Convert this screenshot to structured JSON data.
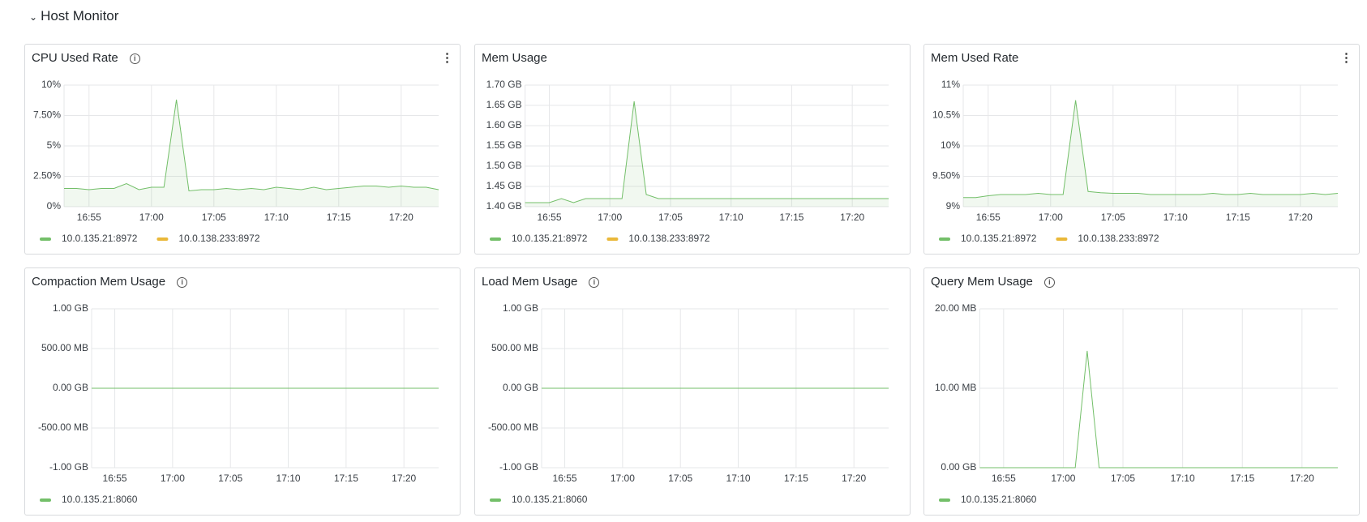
{
  "header": {
    "title": "Host Monitor"
  },
  "chart_data": [
    {
      "type": "line",
      "title": "CPU Used Rate",
      "area": true,
      "x": [
        "16:53",
        "16:54",
        "16:55",
        "16:56",
        "16:57",
        "16:58",
        "16:59",
        "17:00",
        "17:01",
        "17:02",
        "17:03",
        "17:04",
        "17:05",
        "17:06",
        "17:07",
        "17:08",
        "17:09",
        "17:10",
        "17:11",
        "17:12",
        "17:13",
        "17:14",
        "17:15",
        "17:16",
        "17:17",
        "17:18",
        "17:19",
        "17:20",
        "17:21",
        "17:22",
        "17:23"
      ],
      "xlim": [
        "16:53",
        "17:23"
      ],
      "xticks": [
        "16:55",
        "17:00",
        "17:05",
        "17:10",
        "17:15",
        "17:20"
      ],
      "ylim": [
        0,
        10
      ],
      "yticks": [
        {
          "value": 0,
          "label": "0%"
        },
        {
          "value": 2.5,
          "label": "2.50%"
        },
        {
          "value": 5,
          "label": "5%"
        },
        {
          "value": 7.5,
          "label": "7.50%"
        },
        {
          "value": 10,
          "label": "10%"
        }
      ],
      "series": [
        {
          "name": "10.0.135.21:8972",
          "color": "#73bf69",
          "values": [
            1.5,
            1.5,
            1.4,
            1.5,
            1.5,
            1.9,
            1.4,
            1.6,
            1.6,
            8.8,
            1.3,
            1.4,
            1.4,
            1.5,
            1.4,
            1.5,
            1.4,
            1.6,
            1.5,
            1.4,
            1.6,
            1.4,
            1.5,
            1.6,
            1.7,
            1.7,
            1.6,
            1.7,
            1.6,
            1.6,
            1.4
          ]
        },
        {
          "name": "10.0.138.233:8972",
          "color": "#eab839",
          "visible": false
        }
      ]
    },
    {
      "type": "line",
      "title": "Mem Usage",
      "area": true,
      "x": [
        "16:53",
        "16:54",
        "16:55",
        "16:56",
        "16:57",
        "16:58",
        "16:59",
        "17:00",
        "17:01",
        "17:02",
        "17:03",
        "17:04",
        "17:05",
        "17:06",
        "17:07",
        "17:08",
        "17:09",
        "17:10",
        "17:11",
        "17:12",
        "17:13",
        "17:14",
        "17:15",
        "17:16",
        "17:17",
        "17:18",
        "17:19",
        "17:20",
        "17:21",
        "17:22",
        "17:23"
      ],
      "xlim": [
        "16:53",
        "17:23"
      ],
      "xticks": [
        "16:55",
        "17:00",
        "17:05",
        "17:10",
        "17:15",
        "17:20"
      ],
      "ylim": [
        1.4,
        1.7
      ],
      "yticks": [
        {
          "value": 1.4,
          "label": "1.40 GB"
        },
        {
          "value": 1.45,
          "label": "1.45 GB"
        },
        {
          "value": 1.5,
          "label": "1.50 GB"
        },
        {
          "value": 1.55,
          "label": "1.55 GB"
        },
        {
          "value": 1.6,
          "label": "1.60 GB"
        },
        {
          "value": 1.65,
          "label": "1.65 GB"
        },
        {
          "value": 1.7,
          "label": "1.70 GB"
        }
      ],
      "series": [
        {
          "name": "10.0.135.21:8972",
          "color": "#73bf69",
          "values": [
            1.41,
            1.41,
            1.41,
            1.42,
            1.41,
            1.42,
            1.42,
            1.42,
            1.42,
            1.66,
            1.43,
            1.42,
            1.42,
            1.42,
            1.42,
            1.42,
            1.42,
            1.42,
            1.42,
            1.42,
            1.42,
            1.42,
            1.42,
            1.42,
            1.42,
            1.42,
            1.42,
            1.42,
            1.42,
            1.42,
            1.42
          ]
        },
        {
          "name": "10.0.138.233:8972",
          "color": "#eab839",
          "visible": false
        }
      ]
    },
    {
      "type": "line",
      "title": "Mem Used Rate",
      "area": true,
      "x": [
        "16:53",
        "16:54",
        "16:55",
        "16:56",
        "16:57",
        "16:58",
        "16:59",
        "17:00",
        "17:01",
        "17:02",
        "17:03",
        "17:04",
        "17:05",
        "17:06",
        "17:07",
        "17:08",
        "17:09",
        "17:10",
        "17:11",
        "17:12",
        "17:13",
        "17:14",
        "17:15",
        "17:16",
        "17:17",
        "17:18",
        "17:19",
        "17:20",
        "17:21",
        "17:22",
        "17:23"
      ],
      "xlim": [
        "16:53",
        "17:23"
      ],
      "xticks": [
        "16:55",
        "17:00",
        "17:05",
        "17:10",
        "17:15",
        "17:20"
      ],
      "ylim": [
        9,
        11
      ],
      "yticks": [
        {
          "value": 9,
          "label": "9%"
        },
        {
          "value": 9.5,
          "label": "9.50%"
        },
        {
          "value": 10,
          "label": "10%"
        },
        {
          "value": 10.5,
          "label": "10.5%"
        },
        {
          "value": 11,
          "label": "11%"
        }
      ],
      "series": [
        {
          "name": "10.0.135.21:8972",
          "color": "#73bf69",
          "values": [
            9.15,
            9.15,
            9.18,
            9.2,
            9.2,
            9.2,
            9.22,
            9.2,
            9.2,
            10.75,
            9.25,
            9.23,
            9.22,
            9.22,
            9.22,
            9.2,
            9.2,
            9.2,
            9.2,
            9.2,
            9.22,
            9.2,
            9.2,
            9.22,
            9.2,
            9.2,
            9.2,
            9.2,
            9.22,
            9.2,
            9.22
          ]
        },
        {
          "name": "10.0.138.233:8972",
          "color": "#eab839",
          "visible": false
        }
      ]
    },
    {
      "type": "line",
      "title": "Compaction Mem Usage",
      "area": false,
      "x": [
        "16:53",
        "16:54",
        "16:55",
        "16:56",
        "16:57",
        "16:58",
        "16:59",
        "17:00",
        "17:01",
        "17:02",
        "17:03",
        "17:04",
        "17:05",
        "17:06",
        "17:07",
        "17:08",
        "17:09",
        "17:10",
        "17:11",
        "17:12",
        "17:13",
        "17:14",
        "17:15",
        "17:16",
        "17:17",
        "17:18",
        "17:19",
        "17:20",
        "17:21",
        "17:22",
        "17:23"
      ],
      "xlim": [
        "16:53",
        "17:23"
      ],
      "xticks": [
        "16:55",
        "17:00",
        "17:05",
        "17:10",
        "17:15",
        "17:20"
      ],
      "ylim": [
        -1,
        1
      ],
      "yticks": [
        {
          "value": -1,
          "label": "-1.00 GB"
        },
        {
          "value": -0.5,
          "label": "-500.00 MB"
        },
        {
          "value": 0,
          "label": "0.00 GB"
        },
        {
          "value": 0.5,
          "label": "500.00 MB"
        },
        {
          "value": 1,
          "label": "1.00 GB"
        }
      ],
      "series": [
        {
          "name": "10.0.135.21:8060",
          "color": "#73bf69",
          "values": [
            0,
            0,
            0,
            0,
            0,
            0,
            0,
            0,
            0,
            0,
            0,
            0,
            0,
            0,
            0,
            0,
            0,
            0,
            0,
            0,
            0,
            0,
            0,
            0,
            0,
            0,
            0,
            0,
            0,
            0,
            0
          ]
        }
      ]
    },
    {
      "type": "line",
      "title": "Load Mem Usage",
      "area": false,
      "x": [
        "16:53",
        "16:54",
        "16:55",
        "16:56",
        "16:57",
        "16:58",
        "16:59",
        "17:00",
        "17:01",
        "17:02",
        "17:03",
        "17:04",
        "17:05",
        "17:06",
        "17:07",
        "17:08",
        "17:09",
        "17:10",
        "17:11",
        "17:12",
        "17:13",
        "17:14",
        "17:15",
        "17:16",
        "17:17",
        "17:18",
        "17:19",
        "17:20",
        "17:21",
        "17:22",
        "17:23"
      ],
      "xlim": [
        "16:53",
        "17:23"
      ],
      "xticks": [
        "16:55",
        "17:00",
        "17:05",
        "17:10",
        "17:15",
        "17:20"
      ],
      "ylim": [
        -1,
        1
      ],
      "yticks": [
        {
          "value": -1,
          "label": "-1.00 GB"
        },
        {
          "value": -0.5,
          "label": "-500.00 MB"
        },
        {
          "value": 0,
          "label": "0.00 GB"
        },
        {
          "value": 0.5,
          "label": "500.00 MB"
        },
        {
          "value": 1,
          "label": "1.00 GB"
        }
      ],
      "series": [
        {
          "name": "10.0.135.21:8060",
          "color": "#73bf69",
          "values": [
            0,
            0,
            0,
            0,
            0,
            0,
            0,
            0,
            0,
            0,
            0,
            0,
            0,
            0,
            0,
            0,
            0,
            0,
            0,
            0,
            0,
            0,
            0,
            0,
            0,
            0,
            0,
            0,
            0,
            0,
            0
          ]
        }
      ]
    },
    {
      "type": "line",
      "title": "Query Mem Usage",
      "area": false,
      "x": [
        "16:53",
        "16:54",
        "16:55",
        "16:56",
        "16:57",
        "16:58",
        "16:59",
        "17:00",
        "17:01",
        "17:02",
        "17:03",
        "17:04",
        "17:05",
        "17:06",
        "17:07",
        "17:08",
        "17:09",
        "17:10",
        "17:11",
        "17:12",
        "17:13",
        "17:14",
        "17:15",
        "17:16",
        "17:17",
        "17:18",
        "17:19",
        "17:20",
        "17:21",
        "17:22",
        "17:23"
      ],
      "xlim": [
        "16:53",
        "17:23"
      ],
      "xticks": [
        "16:55",
        "17:00",
        "17:05",
        "17:10",
        "17:15",
        "17:20"
      ],
      "ylim": [
        0,
        20
      ],
      "yticks": [
        {
          "value": 0,
          "label": "0.00 GB"
        },
        {
          "value": 10,
          "label": "10.00 MB"
        },
        {
          "value": 20,
          "label": "20.00 MB"
        }
      ],
      "series": [
        {
          "name": "10.0.135.21:8060",
          "color": "#73bf69",
          "values": [
            0,
            0,
            0,
            0,
            0,
            0,
            0,
            0,
            0,
            14.7,
            0,
            0,
            0,
            0,
            0,
            0,
            0,
            0,
            0,
            0,
            0,
            0,
            0,
            0,
            0,
            0,
            0,
            0,
            0,
            0,
            0
          ]
        }
      ]
    }
  ]
}
